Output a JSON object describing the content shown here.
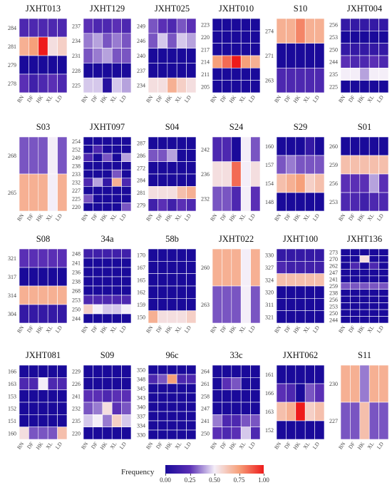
{
  "chart_data": {
    "type": "heatmap",
    "columns": [
      "BN",
      "DF",
      "HK",
      "XL",
      "LD"
    ],
    "legend": {
      "title": "Frequency",
      "ticks": [
        "0.00",
        "0.25",
        "0.50",
        "0.75",
        "1.00"
      ]
    },
    "panels": [
      {
        "title": "JXHT013",
        "rows": [
          "284",
          "281",
          "279",
          "278"
        ],
        "values": [
          [
            0.2,
            0.2,
            0.2,
            0.2,
            0.2
          ],
          [
            0.7,
            0.75,
            1,
            0.55,
            0.6
          ],
          [
            0,
            0,
            0,
            0,
            0
          ],
          [
            0.25,
            0.15,
            0.2,
            0.25,
            0.2
          ]
        ]
      },
      {
        "title": "JXHT129",
        "rows": [
          "237",
          "234",
          "231",
          "228",
          "225"
        ],
        "values": [
          [
            0.25,
            0.2,
            0.2,
            0.25,
            0.2
          ],
          [
            0.35,
            0.4,
            0.3,
            0.35,
            0.3
          ],
          [
            0.3,
            0.35,
            0.4,
            0.3,
            0.3
          ],
          [
            0,
            0,
            0,
            0,
            0
          ],
          [
            0.45,
            0.45,
            0.05,
            0.45,
            0.4
          ]
        ]
      },
      {
        "title": "JXHT025",
        "rows": [
          "249",
          "246",
          "240",
          "237",
          "234"
        ],
        "values": [
          [
            0.3,
            0.25,
            0.2,
            0.3,
            0.25
          ],
          [
            0.3,
            0.45,
            0.3,
            0.45,
            0.4
          ],
          [
            0,
            0,
            0,
            0,
            0
          ],
          [
            0,
            0,
            0,
            0,
            0
          ],
          [
            0.55,
            0.55,
            0.7,
            0.6,
            0.55
          ]
        ]
      },
      {
        "title": "JXHT010",
        "rows": [
          "223",
          "220",
          "217",
          "214",
          "211",
          "205"
        ],
        "values": [
          [
            0,
            0,
            0,
            0,
            0
          ],
          [
            0,
            0,
            0,
            0,
            0
          ],
          [
            0,
            0,
            0,
            0,
            0
          ],
          [
            0.75,
            0.85,
            1,
            0.75,
            0.7
          ],
          [
            0,
            0,
            0,
            0,
            0
          ],
          [
            0,
            0,
            0,
            0,
            0
          ]
        ]
      },
      {
        "title": "S10",
        "rows": [
          "274",
          "271",
          "263"
        ],
        "values": [
          [
            0.7,
            0.7,
            0.8,
            0.7,
            0.7
          ],
          [
            0,
            0,
            0,
            0,
            0
          ],
          [
            0.2,
            0.2,
            0.2,
            0.2,
            0.2
          ]
        ]
      },
      {
        "title": "JXHT004",
        "rows": [
          "256",
          "253",
          "250",
          "244",
          "235",
          "225"
        ],
        "values": [
          [
            0.1,
            0.1,
            0.1,
            0.1,
            0.1
          ],
          [
            0,
            0,
            0,
            0,
            0
          ],
          [
            0.1,
            0.1,
            0.1,
            0.1,
            0.1
          ],
          [
            0.25,
            0.2,
            0.2,
            0.25,
            0.2
          ],
          [
            0.5,
            0.5,
            0.4,
            0.5,
            0.5
          ],
          [
            0,
            0,
            0,
            0,
            0
          ]
        ]
      },
      {
        "title": "S03",
        "rows": [
          "268",
          "265"
        ],
        "values": [
          [
            0.3,
            0.3,
            0.3,
            0.5,
            0.3
          ],
          [
            0.7,
            0.7,
            0.7,
            0.5,
            0.7
          ]
        ]
      },
      {
        "title": "JXHT097",
        "rows": [
          "254",
          "252",
          "249",
          "238",
          "233",
          "232",
          "227",
          "225",
          "220"
        ],
        "values": [
          [
            0,
            0,
            0,
            0,
            0
          ],
          [
            0,
            0.2,
            0,
            0,
            0
          ],
          [
            0.2,
            0,
            0.3,
            0,
            0.4
          ],
          [
            0,
            0,
            0,
            0,
            0
          ],
          [
            0,
            0,
            0,
            0.3,
            0
          ],
          [
            0.2,
            0.4,
            0.1,
            0.7,
            0.2
          ],
          [
            0,
            0,
            0,
            0,
            0
          ],
          [
            0.3,
            0,
            0,
            0,
            0
          ],
          [
            0,
            0,
            0,
            0,
            0.3
          ]
        ]
      },
      {
        "title": "S04",
        "rows": [
          "287",
          "286",
          "272",
          "284",
          "281",
          "279"
        ],
        "values": [
          [
            0,
            0,
            0,
            0,
            0
          ],
          [
            0.3,
            0.3,
            0.4,
            0,
            0
          ],
          [
            0,
            0,
            0,
            0,
            0
          ],
          [
            0,
            0,
            0,
            0,
            0
          ],
          [
            0.55,
            0.55,
            0.55,
            0.65,
            0.7
          ],
          [
            0.15,
            0.25,
            0.15,
            0.25,
            0.2
          ]
        ]
      },
      {
        "title": "S24",
        "rows": [
          "242",
          "236",
          "232"
        ],
        "values": [
          [
            0.2,
            0.2,
            0,
            0.5,
            0.3
          ],
          [
            0.55,
            0.55,
            0.85,
            0.5,
            0.55
          ],
          [
            0.3,
            0.3,
            0.2,
            0.5,
            0.25
          ]
        ]
      },
      {
        "title": "S29",
        "rows": [
          "160",
          "157",
          "154",
          "148"
        ],
        "values": [
          [
            0,
            0,
            0,
            0.1,
            0
          ],
          [
            0.3,
            0.35,
            0.3,
            0.3,
            0.3
          ],
          [
            0.65,
            0.7,
            0.75,
            0.6,
            0.65
          ],
          [
            0,
            0,
            0,
            0,
            0
          ]
        ]
      },
      {
        "title": "S01",
        "rows": [
          "260",
          "259",
          "256",
          "253"
        ],
        "values": [
          [
            0,
            0,
            0,
            0,
            0
          ],
          [
            0.65,
            0.65,
            0.65,
            0.65,
            0.65
          ],
          [
            0.25,
            0.25,
            0.25,
            0.4,
            0.25
          ],
          [
            0.2,
            0.2,
            0.15,
            0.2,
            0.2
          ]
        ]
      },
      {
        "title": "S08",
        "rows": [
          "321",
          "317",
          "314",
          "304"
        ],
        "values": [
          [
            0.25,
            0.25,
            0.25,
            0.25,
            0.25
          ],
          [
            0,
            0,
            0,
            0,
            0
          ],
          [
            0.7,
            0.7,
            0.7,
            0.7,
            0.7
          ],
          [
            0.1,
            0.1,
            0.1,
            0.1,
            0.1
          ]
        ]
      },
      {
        "title": "34a",
        "rows": [
          "248",
          "241",
          "236",
          "238",
          "268",
          "253",
          "250",
          "244"
        ],
        "values": [
          [
            0.15,
            0.15,
            0.15,
            0.15,
            0.15
          ],
          [
            0,
            0,
            0,
            0,
            0
          ],
          [
            0,
            0,
            0,
            0,
            0
          ],
          [
            0,
            0,
            0,
            0,
            0
          ],
          [
            0,
            0,
            0,
            0,
            0
          ],
          [
            0.2,
            0.2,
            0.2,
            0.2,
            0.2
          ],
          [
            0.6,
            0.5,
            0.45,
            0.45,
            0.5
          ],
          [
            0,
            0,
            0,
            0,
            0
          ]
        ]
      },
      {
        "title": "58b",
        "rows": [
          "170",
          "167",
          "165",
          "162",
          "159",
          "150"
        ],
        "values": [
          [
            0,
            0,
            0,
            0,
            0
          ],
          [
            0,
            0,
            0,
            0,
            0
          ],
          [
            0,
            0,
            0,
            0,
            0
          ],
          [
            0,
            0,
            0,
            0,
            0
          ],
          [
            0,
            0,
            0,
            0,
            0
          ],
          [
            0.7,
            0.55,
            0.55,
            0.55,
            0.6
          ]
        ]
      },
      {
        "title": "JXHT022",
        "rows": [
          "260",
          "263"
        ],
        "values": [
          [
            0.7,
            0.7,
            0.7,
            0.5,
            0.7
          ],
          [
            0.3,
            0.3,
            0.3,
            0.5,
            0.3
          ]
        ]
      },
      {
        "title": "JXHT100",
        "rows": [
          "330",
          "327",
          "324",
          "320",
          "311",
          "321"
        ],
        "values": [
          [
            0.1,
            0.1,
            0.1,
            0.1,
            0.1
          ],
          [
            0.2,
            0.15,
            0.15,
            0.15,
            0.15
          ],
          [
            0.65,
            0.65,
            0.65,
            0.65,
            0.65
          ],
          [
            0,
            0,
            0,
            0,
            0
          ],
          [
            0,
            0,
            0,
            0,
            0
          ],
          [
            0,
            0,
            0,
            0,
            0
          ]
        ]
      },
      {
        "title": "JXHT136",
        "rows": [
          "273",
          "270",
          "262",
          "247",
          "241",
          "259",
          "238",
          "256",
          "253",
          "250",
          "244"
        ],
        "values": [
          [
            0,
            0,
            0,
            0,
            0
          ],
          [
            0,
            0,
            0.55,
            0,
            0
          ],
          [
            0,
            0.2,
            0,
            0.2,
            0
          ],
          [
            0,
            0,
            0,
            0,
            0
          ],
          [
            0,
            0,
            0,
            0,
            0
          ],
          [
            0.3,
            0.3,
            0.3,
            0.3,
            0.3
          ],
          [
            0,
            0,
            0,
            0,
            0
          ],
          [
            0,
            0,
            0,
            0,
            0
          ],
          [
            0,
            0,
            0,
            0,
            0
          ],
          [
            0,
            0,
            0,
            0,
            0
          ],
          [
            0,
            0,
            0,
            0,
            0
          ]
        ]
      },
      {
        "title": "JXHT081",
        "rows": [
          "166",
          "163",
          "153",
          "152",
          "151",
          "160"
        ],
        "values": [
          [
            0,
            0,
            0,
            0,
            0
          ],
          [
            0.2,
            0.2,
            0.5,
            0.2,
            0.2
          ],
          [
            0,
            0,
            0,
            0,
            0
          ],
          [
            0,
            0,
            0,
            0,
            0
          ],
          [
            0,
            0,
            0,
            0,
            0
          ],
          [
            0.55,
            0.3,
            0.3,
            0.3,
            0.65
          ]
        ]
      },
      {
        "title": "S09",
        "rows": [
          "229",
          "226",
          "241",
          "232",
          "235",
          "220"
        ],
        "values": [
          [
            0,
            0,
            0,
            0,
            0
          ],
          [
            0,
            0,
            0,
            0,
            0
          ],
          [
            0.25,
            0.25,
            0.2,
            0.25,
            0.25
          ],
          [
            0.3,
            0.35,
            0.55,
            0.25,
            0.3
          ],
          [
            0.45,
            0.5,
            0.35,
            0.6,
            0.45
          ],
          [
            0,
            0,
            0,
            0,
            0
          ]
        ]
      },
      {
        "title": "96c",
        "rows": [
          "350",
          "348",
          "345",
          "343",
          "340",
          "337",
          "334",
          "330"
        ],
        "values": [
          [
            0,
            0,
            0,
            0,
            0
          ],
          [
            0.2,
            0.3,
            0.75,
            0.2,
            0.2
          ],
          [
            0,
            0,
            0,
            0,
            0
          ],
          [
            0,
            0,
            0,
            0,
            0
          ],
          [
            0,
            0,
            0,
            0,
            0
          ],
          [
            0,
            0,
            0,
            0,
            0
          ],
          [
            0,
            0,
            0,
            0,
            0
          ],
          [
            0,
            0,
            0,
            0,
            0
          ]
        ]
      },
      {
        "title": "33c",
        "rows": [
          "264",
          "261",
          "258",
          "247",
          "241",
          "250"
        ],
        "values": [
          [
            0,
            0,
            0,
            0,
            0
          ],
          [
            0,
            0.25,
            0.3,
            0,
            0
          ],
          [
            0,
            0,
            0,
            0,
            0
          ],
          [
            0,
            0,
            0,
            0,
            0
          ],
          [
            0.35,
            0.2,
            0.2,
            0.3,
            0.3
          ],
          [
            0.25,
            0.2,
            0.25,
            0.45,
            0.2
          ]
        ]
      },
      {
        "title": "JXHT062",
        "rows": [
          "161",
          "166",
          "163",
          "152"
        ],
        "values": [
          [
            0,
            0,
            0,
            0,
            0
          ],
          [
            0.25,
            0.2,
            0,
            0.3,
            0.25
          ],
          [
            0.65,
            0.7,
            1,
            0.6,
            0.65
          ],
          [
            0,
            0,
            0,
            0,
            0
          ]
        ]
      },
      {
        "title": "S11",
        "rows": [
          "230",
          "227"
        ],
        "values": [
          [
            0.7,
            0.7,
            0.35,
            0.7,
            0.7
          ],
          [
            0.3,
            0.3,
            0.65,
            0.3,
            0.3
          ]
        ]
      }
    ]
  }
}
